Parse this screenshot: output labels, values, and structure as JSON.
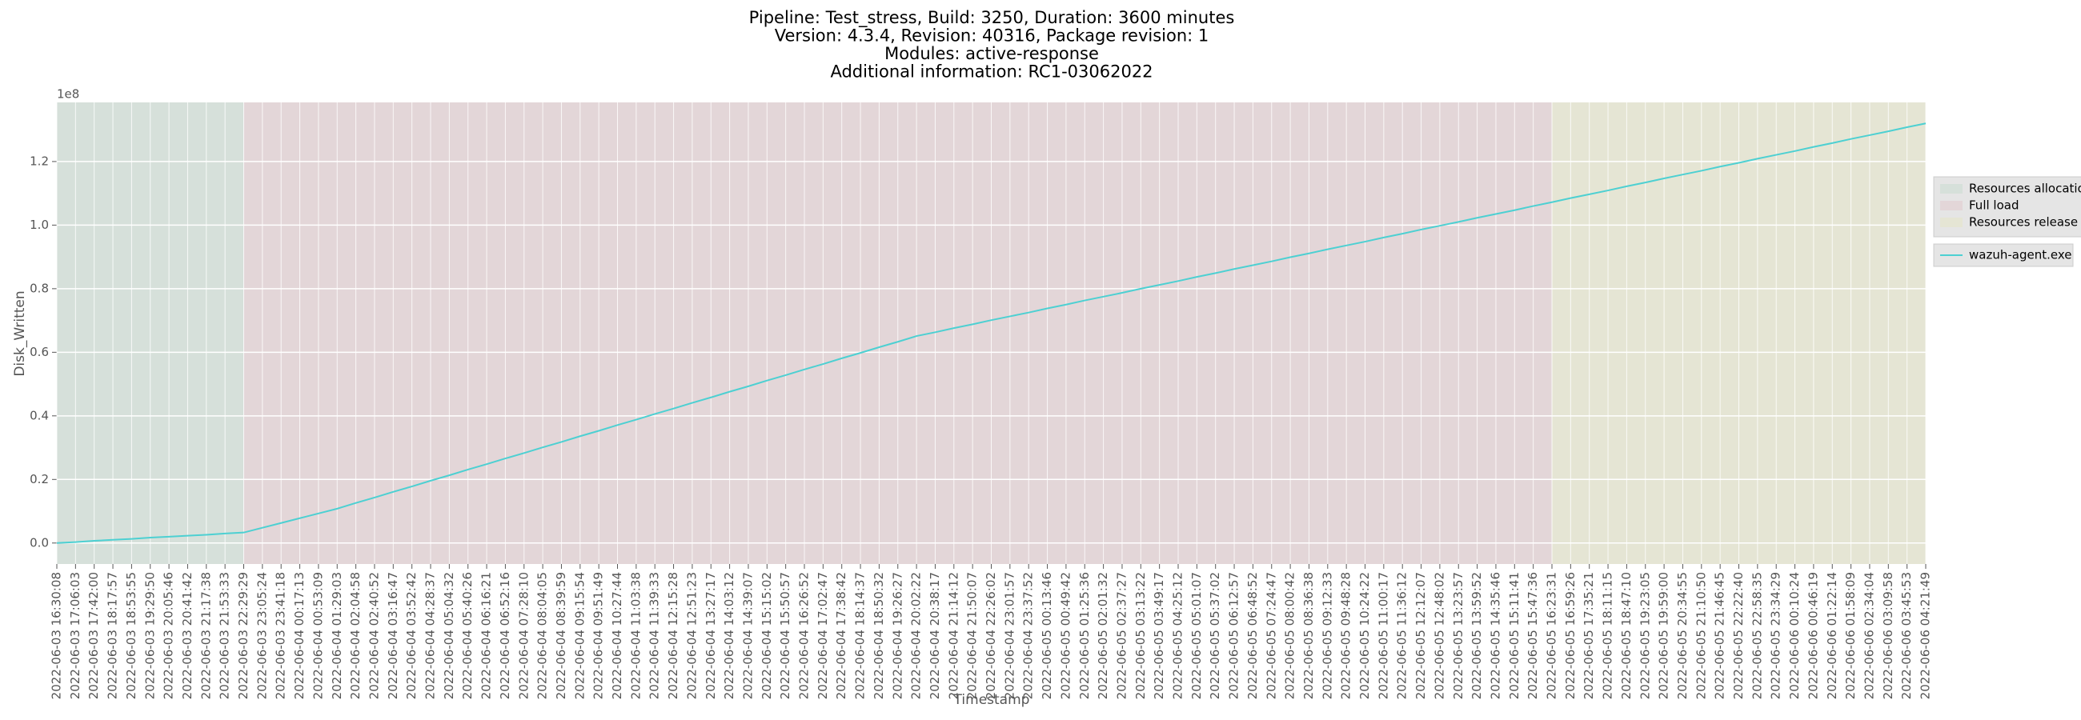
{
  "chart_data": {
    "type": "line",
    "title": [
      "Pipeline: Test_stress, Build: 3250, Duration: 3600 minutes",
      "Version: 4.3.4, Revision: 40316, Package revision: 1",
      "Modules: active-response",
      "Additional information: RC1-03062022"
    ],
    "xlabel": "Timestamp",
    "ylabel": "Disk_Written",
    "y_offset_label": "1e8",
    "categories": [
      "2022-06-03 16:30:08",
      "2022-06-03 17:06:03",
      "2022-06-03 17:42:00",
      "2022-06-03 18:17:57",
      "2022-06-03 18:53:55",
      "2022-06-03 19:29:50",
      "2022-06-03 20:05:46",
      "2022-06-03 20:41:42",
      "2022-06-03 21:17:38",
      "2022-06-03 21:53:33",
      "2022-06-03 22:29:29",
      "2022-06-03 23:05:24",
      "2022-06-03 23:41:18",
      "2022-06-04 00:17:13",
      "2022-06-04 00:53:09",
      "2022-06-04 01:29:03",
      "2022-06-04 02:04:58",
      "2022-06-04 02:40:52",
      "2022-06-04 03:16:47",
      "2022-06-04 03:52:42",
      "2022-06-04 04:28:37",
      "2022-06-04 05:04:32",
      "2022-06-04 05:40:26",
      "2022-06-04 06:16:21",
      "2022-06-04 06:52:16",
      "2022-06-04 07:28:10",
      "2022-06-04 08:04:05",
      "2022-06-04 08:39:59",
      "2022-06-04 09:15:54",
      "2022-06-04 09:51:49",
      "2022-06-04 10:27:44",
      "2022-06-04 11:03:38",
      "2022-06-04 11:39:33",
      "2022-06-04 12:15:28",
      "2022-06-04 12:51:23",
      "2022-06-04 13:27:17",
      "2022-06-04 14:03:12",
      "2022-06-04 14:39:07",
      "2022-06-04 15:15:02",
      "2022-06-04 15:50:57",
      "2022-06-04 16:26:52",
      "2022-06-04 17:02:47",
      "2022-06-04 17:38:42",
      "2022-06-04 18:14:37",
      "2022-06-04 18:50:32",
      "2022-06-04 19:26:27",
      "2022-06-04 20:02:22",
      "2022-06-04 20:38:17",
      "2022-06-04 21:14:12",
      "2022-06-04 21:50:07",
      "2022-06-04 22:26:02",
      "2022-06-04 23:01:57",
      "2022-06-04 23:37:52",
      "2022-06-05 00:13:46",
      "2022-06-05 00:49:42",
      "2022-06-05 01:25:36",
      "2022-06-05 02:01:32",
      "2022-06-05 02:37:27",
      "2022-06-05 03:13:22",
      "2022-06-05 03:49:17",
      "2022-06-05 04:25:12",
      "2022-06-05 05:01:07",
      "2022-06-05 05:37:02",
      "2022-06-05 06:12:57",
      "2022-06-05 06:48:52",
      "2022-06-05 07:24:47",
      "2022-06-05 08:00:42",
      "2022-06-05 08:36:38",
      "2022-06-05 09:12:33",
      "2022-06-05 09:48:28",
      "2022-06-05 10:24:22",
      "2022-06-05 11:00:17",
      "2022-06-05 11:36:12",
      "2022-06-05 12:12:07",
      "2022-06-05 12:48:02",
      "2022-06-05 13:23:57",
      "2022-06-05 13:59:52",
      "2022-06-05 14:35:46",
      "2022-06-05 15:11:41",
      "2022-06-05 15:47:36",
      "2022-06-05 16:23:31",
      "2022-06-05 16:59:26",
      "2022-06-05 17:35:21",
      "2022-06-05 18:11:15",
      "2022-06-05 18:47:10",
      "2022-06-05 19:23:05",
      "2022-06-05 19:59:00",
      "2022-06-05 20:34:55",
      "2022-06-05 21:10:50",
      "2022-06-05 21:46:45",
      "2022-06-05 22:22:40",
      "2022-06-05 22:58:35",
      "2022-06-05 23:34:29",
      "2022-06-06 00:10:24",
      "2022-06-06 00:46:19",
      "2022-06-06 01:22:14",
      "2022-06-06 01:58:09",
      "2022-06-06 02:34:04",
      "2022-06-06 03:09:58",
      "2022-06-06 03:45:53",
      "2022-06-06 04:21:49"
    ],
    "series": [
      {
        "name": "wazuh-agent.exe",
        "color": "#4dd0d2",
        "values": [
          0,
          0.003,
          0.007,
          0.01,
          0.013,
          0.017,
          0.02,
          0.023,
          0.026,
          0.03,
          0.033,
          0.048,
          0.063,
          0.078,
          0.093,
          0.108,
          0.126,
          0.143,
          0.161,
          0.178,
          0.196,
          0.213,
          0.231,
          0.248,
          0.266,
          0.283,
          0.301,
          0.318,
          0.336,
          0.353,
          0.371,
          0.388,
          0.406,
          0.423,
          0.441,
          0.458,
          0.476,
          0.493,
          0.511,
          0.528,
          0.546,
          0.563,
          0.581,
          0.598,
          0.616,
          0.633,
          0.651,
          0.663,
          0.676,
          0.688,
          0.701,
          0.713,
          0.725,
          0.738,
          0.75,
          0.763,
          0.775,
          0.787,
          0.8,
          0.812,
          0.824,
          0.837,
          0.849,
          0.862,
          0.874,
          0.886,
          0.899,
          0.911,
          0.924,
          0.936,
          0.948,
          0.961,
          0.973,
          0.986,
          0.998,
          1.01,
          1.023,
          1.035,
          1.047,
          1.06,
          1.072,
          1.085,
          1.097,
          1.109,
          1.122,
          1.134,
          1.147,
          1.159,
          1.171,
          1.184,
          1.196,
          1.209,
          1.221,
          1.233,
          1.246,
          1.258,
          1.271,
          1.283,
          1.295,
          1.308,
          1.32
        ]
      }
    ],
    "phases": [
      {
        "name": "Resources allocation",
        "color": "#d6e0da",
        "start": "2022-06-03 16:30:08",
        "end": "2022-06-03 22:29:29"
      },
      {
        "name": "Full load",
        "color": "#e3d6d8",
        "start": "2022-06-03 22:29:29",
        "end": "2022-06-05 16:23:31"
      },
      {
        "name": "Resources release",
        "color": "#e5e5d4",
        "start": "2022-06-05 16:23:31",
        "end": "2022-06-06 04:21:49"
      }
    ],
    "ylim": [
      -0.066,
      1.386
    ],
    "yticks": [
      {
        "value": 0,
        "label": "0.0"
      },
      0.2,
      0.4,
      0.6,
      0.8,
      {
        "value": 1,
        "label": "1.0"
      },
      1.2
    ],
    "grid": true
  }
}
